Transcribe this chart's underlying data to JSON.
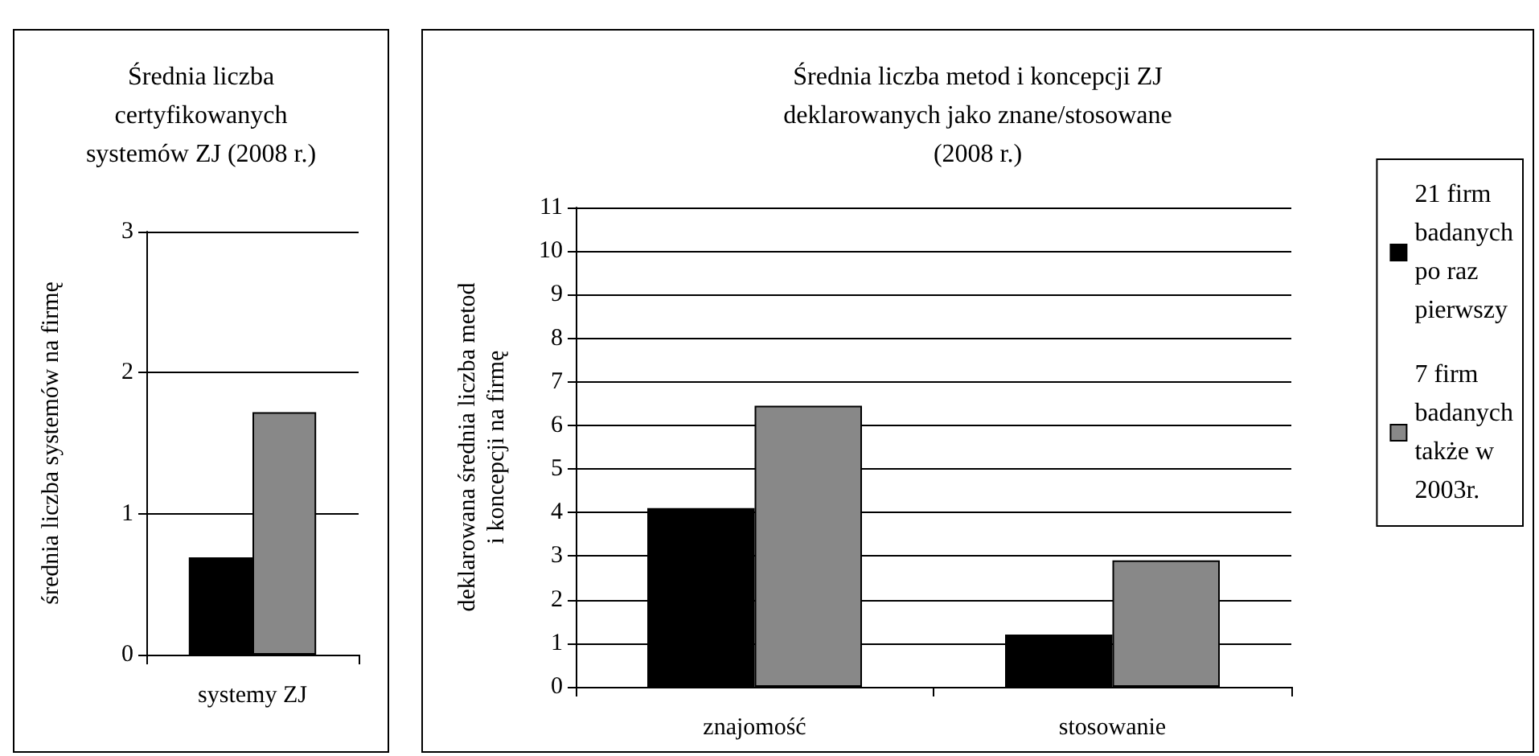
{
  "chart_data": [
    {
      "type": "bar",
      "title": "Średnia liczba certyfikowanych systemów ZJ (2008 r.)",
      "ylabel": "średnia liczba systemów na firmę",
      "categories": [
        "systemy ZJ"
      ],
      "series": [
        {
          "color": "#000000",
          "values": [
            0.69
          ]
        },
        {
          "color": "#888888",
          "values": [
            1.72
          ]
        }
      ],
      "ylim": [
        0,
        3
      ],
      "yticks": [
        0,
        1,
        2,
        3
      ],
      "grid": "y",
      "legend": false
    },
    {
      "type": "bar",
      "title": "Średnia liczba metod i koncepcji ZJ deklarowanych jako znane/stosowane (2008 r.)",
      "ylabel": "deklarowana średnia liczba metod i koncepcji na firmę",
      "categories": [
        "znajomość",
        "stosowanie"
      ],
      "series": [
        {
          "name": "21 firm badanych po raz pierwszy",
          "color": "#000000",
          "values": [
            4.1,
            1.2
          ]
        },
        {
          "name": "7 firm badanych także w 2003r.",
          "color": "#888888",
          "values": [
            6.45,
            2.9
          ]
        }
      ],
      "ylim": [
        0,
        11
      ],
      "yticks": [
        0,
        1,
        2,
        3,
        4,
        5,
        6,
        7,
        8,
        9,
        10,
        11
      ],
      "grid": "y",
      "legend": "right"
    }
  ]
}
